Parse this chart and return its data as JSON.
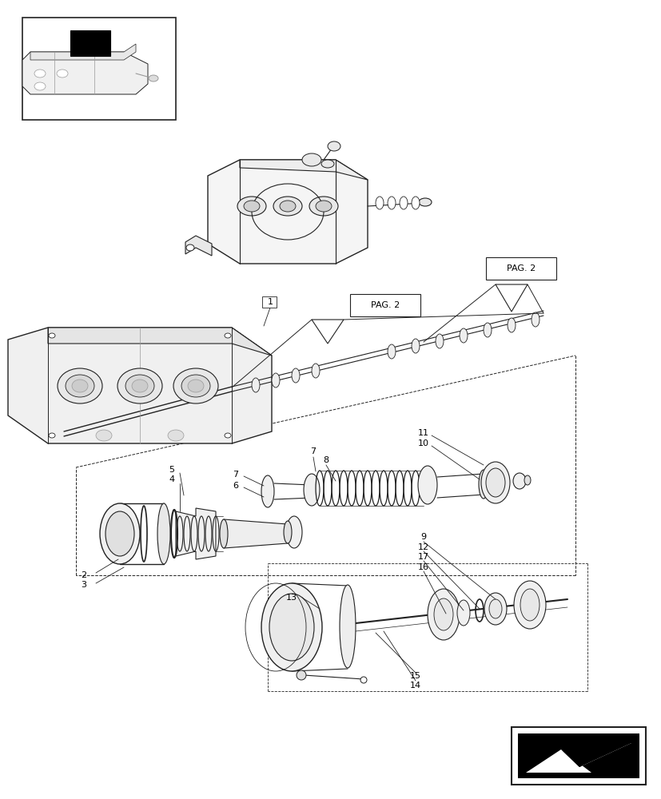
{
  "bg_color": "#ffffff",
  "lc": "#222222",
  "lc_light": "#999999",
  "page_width": 8.28,
  "page_height": 10.0,
  "dpi": 100
}
